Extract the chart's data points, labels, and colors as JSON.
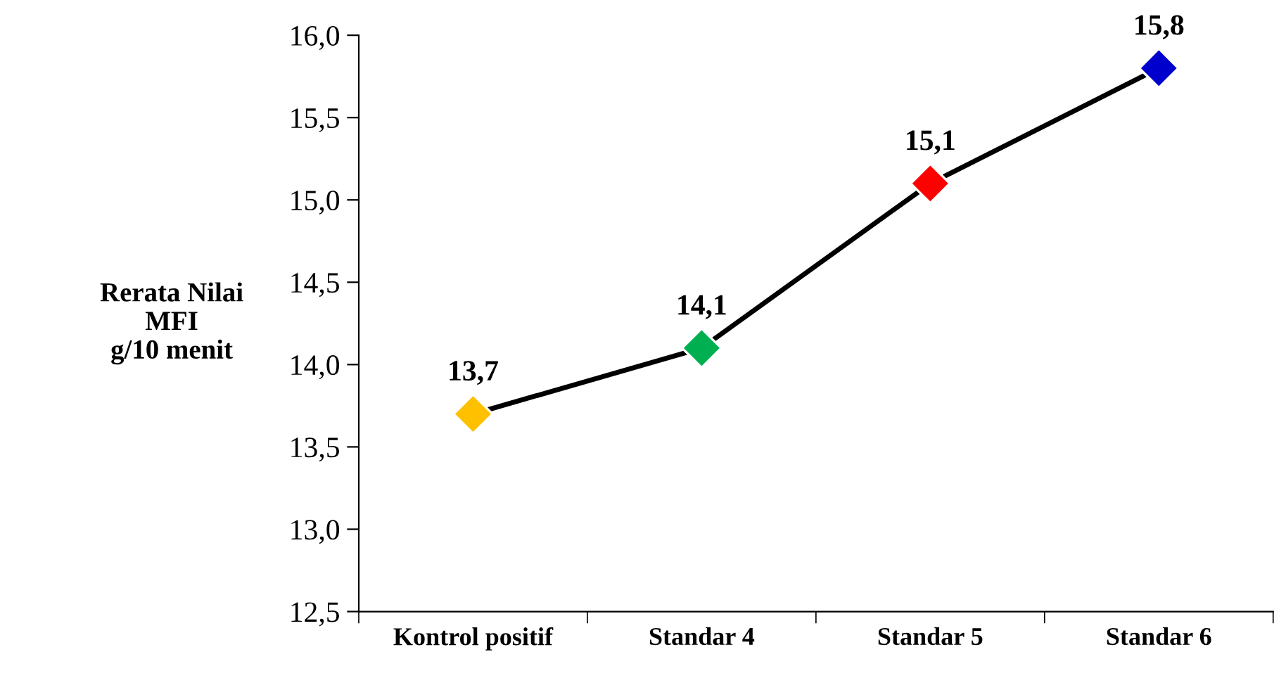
{
  "chart_data": {
    "type": "line",
    "ylabel": "Rerata Nilai\nMFI\ng/10 menit",
    "categories": [
      "Kontrol positif",
      "Standar 4",
      "Standar 5",
      "Standar 6"
    ],
    "series": [
      {
        "color": "#000000",
        "colors": [
          "#ffc000",
          "#00b050",
          "#ff0000",
          "#0000cc"
        ],
        "values": [
          13.7,
          14.1,
          15.1,
          15.8
        ],
        "value_labels": [
          "13,7",
          "14,1",
          "15,1",
          "15,8"
        ]
      }
    ],
    "ylim": [
      12.5,
      16.0
    ],
    "yticks": [
      {
        "value": 12.5,
        "label": "12,5"
      },
      {
        "value": 13.0,
        "label": "13,0"
      },
      {
        "value": 13.5,
        "label": "13,5"
      },
      {
        "value": 14.0,
        "label": "14,0"
      },
      {
        "value": 14.5,
        "label": "14,5"
      },
      {
        "value": 15.0,
        "label": "15,0"
      },
      {
        "value": 15.5,
        "label": "15,5"
      },
      {
        "value": 16.0,
        "label": "16,0"
      }
    ],
    "grid": false,
    "marker": "diamond",
    "line_style": "solid"
  }
}
